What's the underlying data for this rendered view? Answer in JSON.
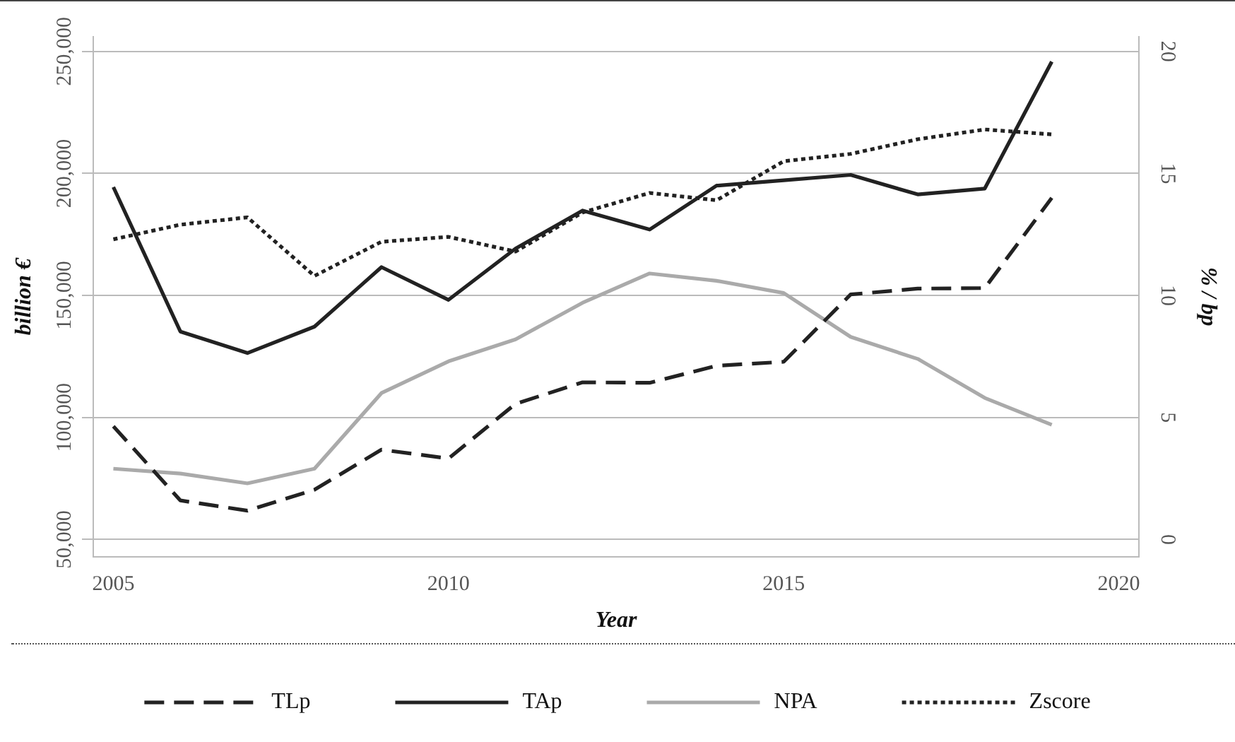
{
  "chart_data": {
    "type": "line",
    "xlabel": "Year",
    "ylabel": "billion €",
    "y2label": "% / bp",
    "x": [
      2005,
      2006,
      2007,
      2008,
      2009,
      2010,
      2011,
      2012,
      2013,
      2014,
      2015,
      2016,
      2017,
      2018,
      2019
    ],
    "xlim": [
      2004.7,
      2020.3
    ],
    "xticks": [
      2005,
      2010,
      2015,
      2020
    ],
    "ylim": [
      43000,
      256000
    ],
    "yticks": [
      {
        "value": 50000,
        "label": "50,000"
      },
      {
        "value": 100000,
        "label": "100,000"
      },
      {
        "value": 150000,
        "label": "150,000"
      },
      {
        "value": 200000,
        "label": "200,000"
      },
      {
        "value": 250000,
        "label": "250,000"
      }
    ],
    "y2lim": [
      -0.7,
      20.6
    ],
    "y2ticks": [
      0,
      5,
      10,
      15,
      20
    ],
    "grid": "y",
    "legend": "bottom",
    "marker": "none",
    "series": [
      {
        "name": "TLp",
        "color": "#222222",
        "line_style": "dashed",
        "axis": "y",
        "values": [
          96400,
          66000,
          61800,
          70400,
          86800,
          83200,
          105600,
          114400,
          114200,
          121200,
          122800,
          150400,
          152800,
          153000,
          190000
        ]
      },
      {
        "name": "TAp",
        "color": "#222222",
        "line_style": "solid",
        "axis": "y",
        "values": [
          194400,
          135200,
          126400,
          137200,
          161600,
          148200,
          169200,
          184800,
          177000,
          195000,
          197200,
          199400,
          191400,
          193800,
          245800
        ]
      },
      {
        "name": "NPA",
        "color": "#aaaaaa",
        "line_style": "solid",
        "axis": "y2",
        "values": [
          2.9,
          2.7,
          2.3,
          2.9,
          6.0,
          7.3,
          8.2,
          9.7,
          10.9,
          10.6,
          10.1,
          8.3,
          7.4,
          5.8,
          4.7
        ]
      },
      {
        "name": "Zscore",
        "color": "#222222",
        "line_style": "dotted",
        "axis": "y2",
        "values": [
          12.3,
          12.9,
          13.2,
          10.8,
          12.2,
          12.4,
          11.8,
          13.4,
          14.2,
          13.9,
          15.5,
          15.8,
          16.4,
          16.8,
          16.6
        ]
      }
    ]
  }
}
